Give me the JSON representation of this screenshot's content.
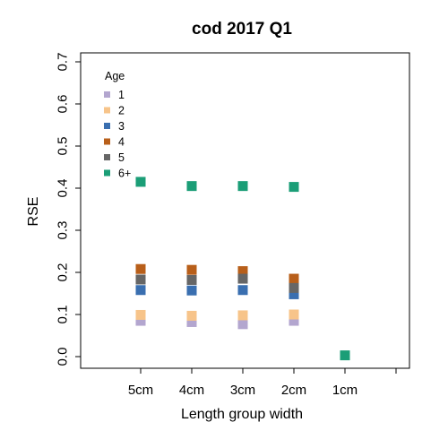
{
  "chart_data": {
    "type": "scatter",
    "title": "cod 2017 Q1",
    "xlabel": "Length group width",
    "ylabel": "RSE",
    "categories": [
      "5cm",
      "4cm",
      "3cm",
      "2cm",
      "1cm",
      ""
    ],
    "ylim": [
      0.0,
      0.7
    ],
    "yticks": [
      "0.0",
      "0.1",
      "0.2",
      "0.3",
      "0.4",
      "0.5",
      "0.6",
      "0.7"
    ],
    "grid": false,
    "legend": {
      "title": "Age",
      "placement": "top-left"
    },
    "series": [
      {
        "name": "1",
        "color": "#b3a6cf",
        "values": [
          0.085,
          0.082,
          0.077,
          0.085,
          null,
          null
        ]
      },
      {
        "name": "2",
        "color": "#f7c48a",
        "values": [
          0.099,
          0.097,
          0.098,
          0.1,
          null,
          null
        ]
      },
      {
        "name": "3",
        "color": "#3a6fb0",
        "values": [
          0.158,
          0.157,
          0.158,
          0.148,
          null,
          null
        ]
      },
      {
        "name": "4",
        "color": "#b85f1a",
        "values": [
          0.208,
          0.206,
          0.203,
          0.185,
          null,
          null
        ]
      },
      {
        "name": "5",
        "color": "#666666",
        "values": [
          0.183,
          0.182,
          0.185,
          0.163,
          null,
          null
        ]
      },
      {
        "name": "6+",
        "color": "#1b9e77",
        "values": [
          0.415,
          0.405,
          0.405,
          0.403,
          0.003,
          null
        ]
      }
    ]
  }
}
